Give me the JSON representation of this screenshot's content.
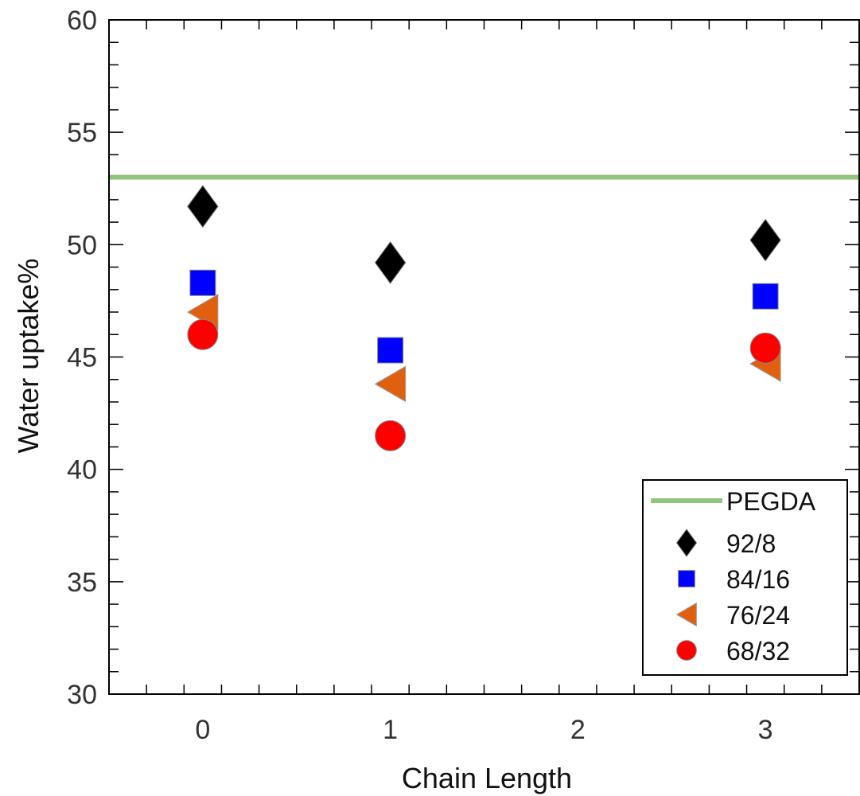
{
  "chart_data": {
    "type": "scatter",
    "xlabel": "Chain Length",
    "ylabel": "Water uptake%",
    "xlim": [
      -0.5,
      3.5
    ],
    "ylim": [
      30,
      60
    ],
    "x_ticks": [
      "0",
      "1",
      "2",
      "3"
    ],
    "y_ticks": [
      "30",
      "35",
      "40",
      "45",
      "50",
      "55",
      "60"
    ],
    "grid": false,
    "legend_position": "bottom-right",
    "reference_line": {
      "name": "PEGDA",
      "y": 53.0,
      "color": "#93c47d"
    },
    "series": [
      {
        "name": "92/8",
        "marker": "diamond",
        "color": "#000000",
        "x": [
          0,
          1,
          3
        ],
        "y": [
          51.7,
          49.2,
          50.2
        ]
      },
      {
        "name": "84/16",
        "marker": "square",
        "color": "#0000ff",
        "x": [
          0,
          1,
          3
        ],
        "y": [
          48.3,
          45.3,
          47.7
        ]
      },
      {
        "name": "76/24",
        "marker": "triangle-left",
        "color": "#e06010",
        "x": [
          0,
          1,
          3
        ],
        "y": [
          47.0,
          43.8,
          44.7
        ]
      },
      {
        "name": "68/32",
        "marker": "circle",
        "color": "#ff0000",
        "x": [
          0,
          1,
          3
        ],
        "y": [
          46.0,
          41.5,
          45.4
        ]
      }
    ]
  }
}
